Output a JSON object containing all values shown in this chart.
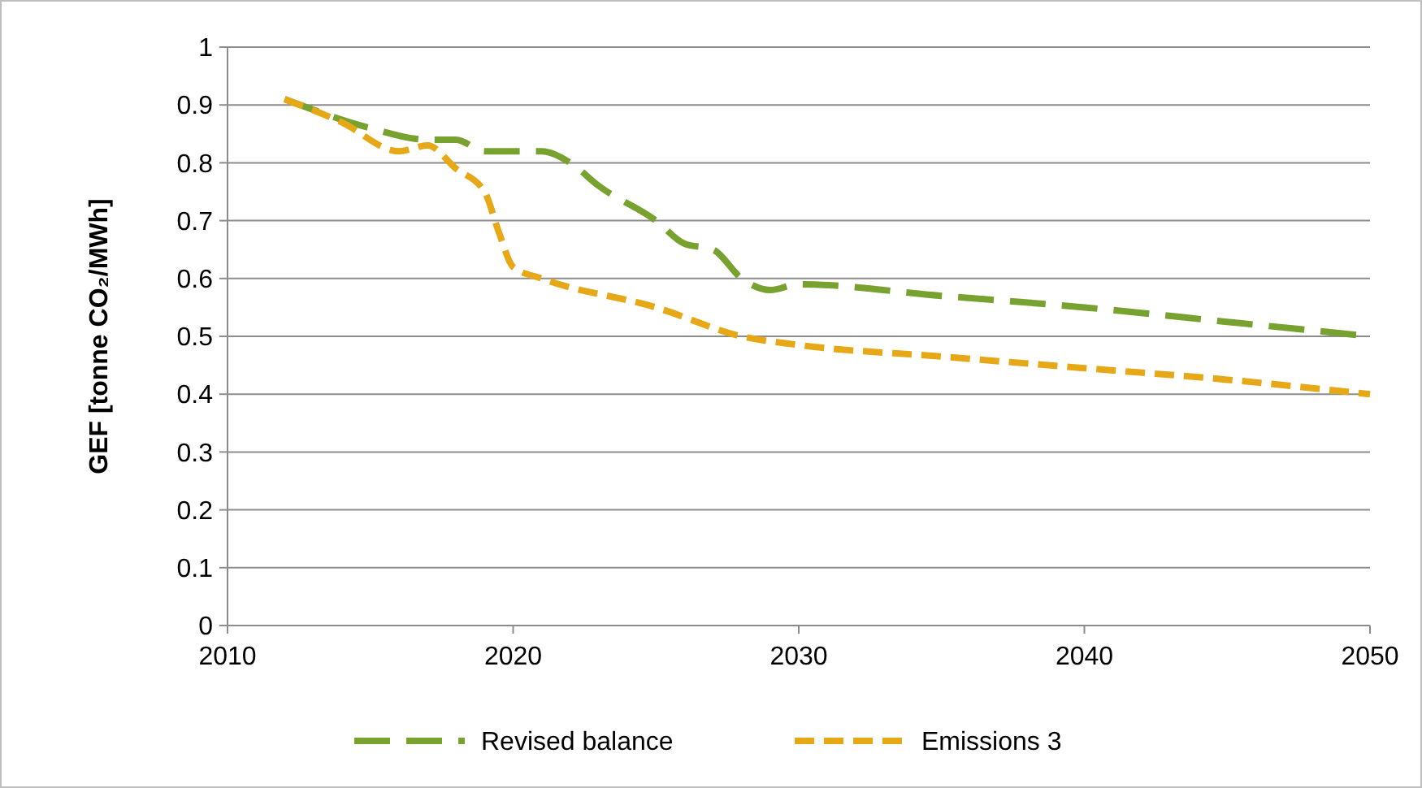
{
  "chart_data": {
    "type": "line",
    "ylabel": "GEF [tonne CO₂/MWh]",
    "xlim": [
      2010,
      2050
    ],
    "xticks": [
      2010,
      2020,
      2030,
      2040,
      2050
    ],
    "ylim": [
      0,
      1
    ],
    "yticks": [
      0,
      0.1,
      0.2,
      0.3,
      0.4,
      0.5,
      0.6,
      0.7,
      0.8,
      0.9,
      1
    ],
    "grid": "y",
    "legend": "bottom",
    "line_style": "dashed",
    "series": [
      {
        "name": "Revised balance",
        "color": "#78a22f",
        "x": [
          2012,
          2015,
          2017,
          2018,
          2019,
          2021,
          2022,
          2023,
          2025,
          2026,
          2027,
          2028,
          2029,
          2030,
          2035,
          2040,
          2045,
          2050
        ],
        "values": [
          0.91,
          0.86,
          0.84,
          0.84,
          0.82,
          0.82,
          0.8,
          0.76,
          0.7,
          0.66,
          0.65,
          0.6,
          0.58,
          0.59,
          0.57,
          0.55,
          0.525,
          0.5
        ]
      },
      {
        "name": "Emissions 3",
        "color": "#e6a817",
        "x": [
          2012,
          2014,
          2016,
          2017,
          2018,
          2019,
          2019.5,
          2020,
          2021,
          2025,
          2028,
          2030,
          2035,
          2040,
          2045,
          2050
        ],
        "values": [
          0.91,
          0.87,
          0.82,
          0.83,
          0.79,
          0.75,
          0.68,
          0.62,
          0.6,
          0.55,
          0.5,
          0.485,
          0.465,
          0.445,
          0.425,
          0.4
        ]
      }
    ]
  }
}
